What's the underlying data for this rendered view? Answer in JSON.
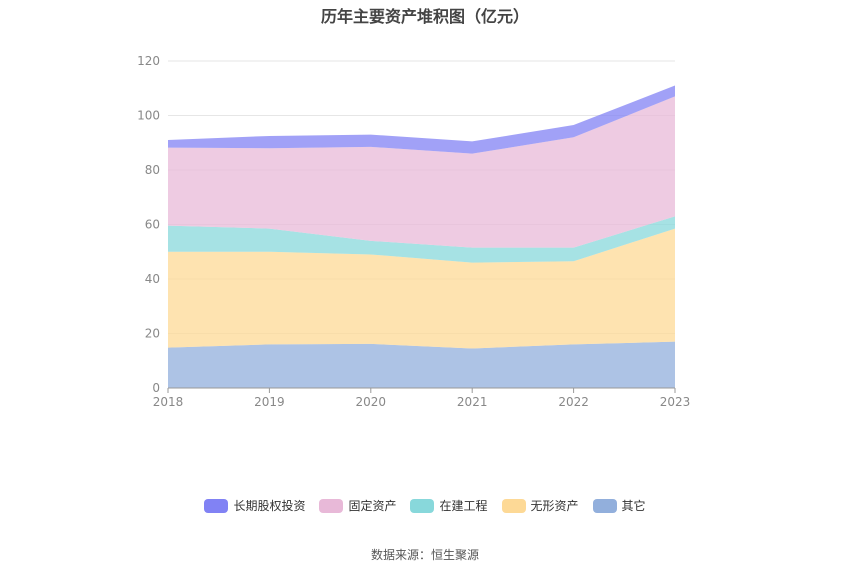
{
  "chart_data": {
    "type": "area",
    "stacked": true,
    "title": "历年主要资产堆积图（亿元）",
    "x": [
      "2018",
      "2019",
      "2020",
      "2021",
      "2022",
      "2023"
    ],
    "ylim": [
      0,
      120
    ],
    "yticks": [
      0,
      20,
      40,
      60,
      80,
      100,
      120
    ],
    "grid": true,
    "legend_position": "bottom",
    "series": [
      {
        "name": "其它",
        "color": "#92afdc",
        "values": [
          14.8,
          16.0,
          16.2,
          14.5,
          16.0,
          17.0
        ]
      },
      {
        "name": "无形资产",
        "color": "#fdd996",
        "values": [
          35.2,
          34.0,
          32.8,
          31.5,
          30.5,
          41.5
        ]
      },
      {
        "name": "在建工程",
        "color": "#88d8db",
        "values": [
          9.6,
          8.5,
          5.0,
          5.5,
          5.0,
          4.5
        ]
      },
      {
        "name": "固定资产",
        "color": "#e8b9d8",
        "values": [
          28.6,
          29.5,
          34.5,
          34.5,
          40.5,
          44.0
        ]
      },
      {
        "name": "长期股权投资",
        "color": "#8182f4",
        "values": [
          2.8,
          4.5,
          4.5,
          4.5,
          4.5,
          4.0
        ]
      }
    ]
  },
  "legend_order": [
    "长期股权投资",
    "固定资产",
    "在建工程",
    "无形资产",
    "其它"
  ],
  "source_text": "数据来源：恒生聚源"
}
